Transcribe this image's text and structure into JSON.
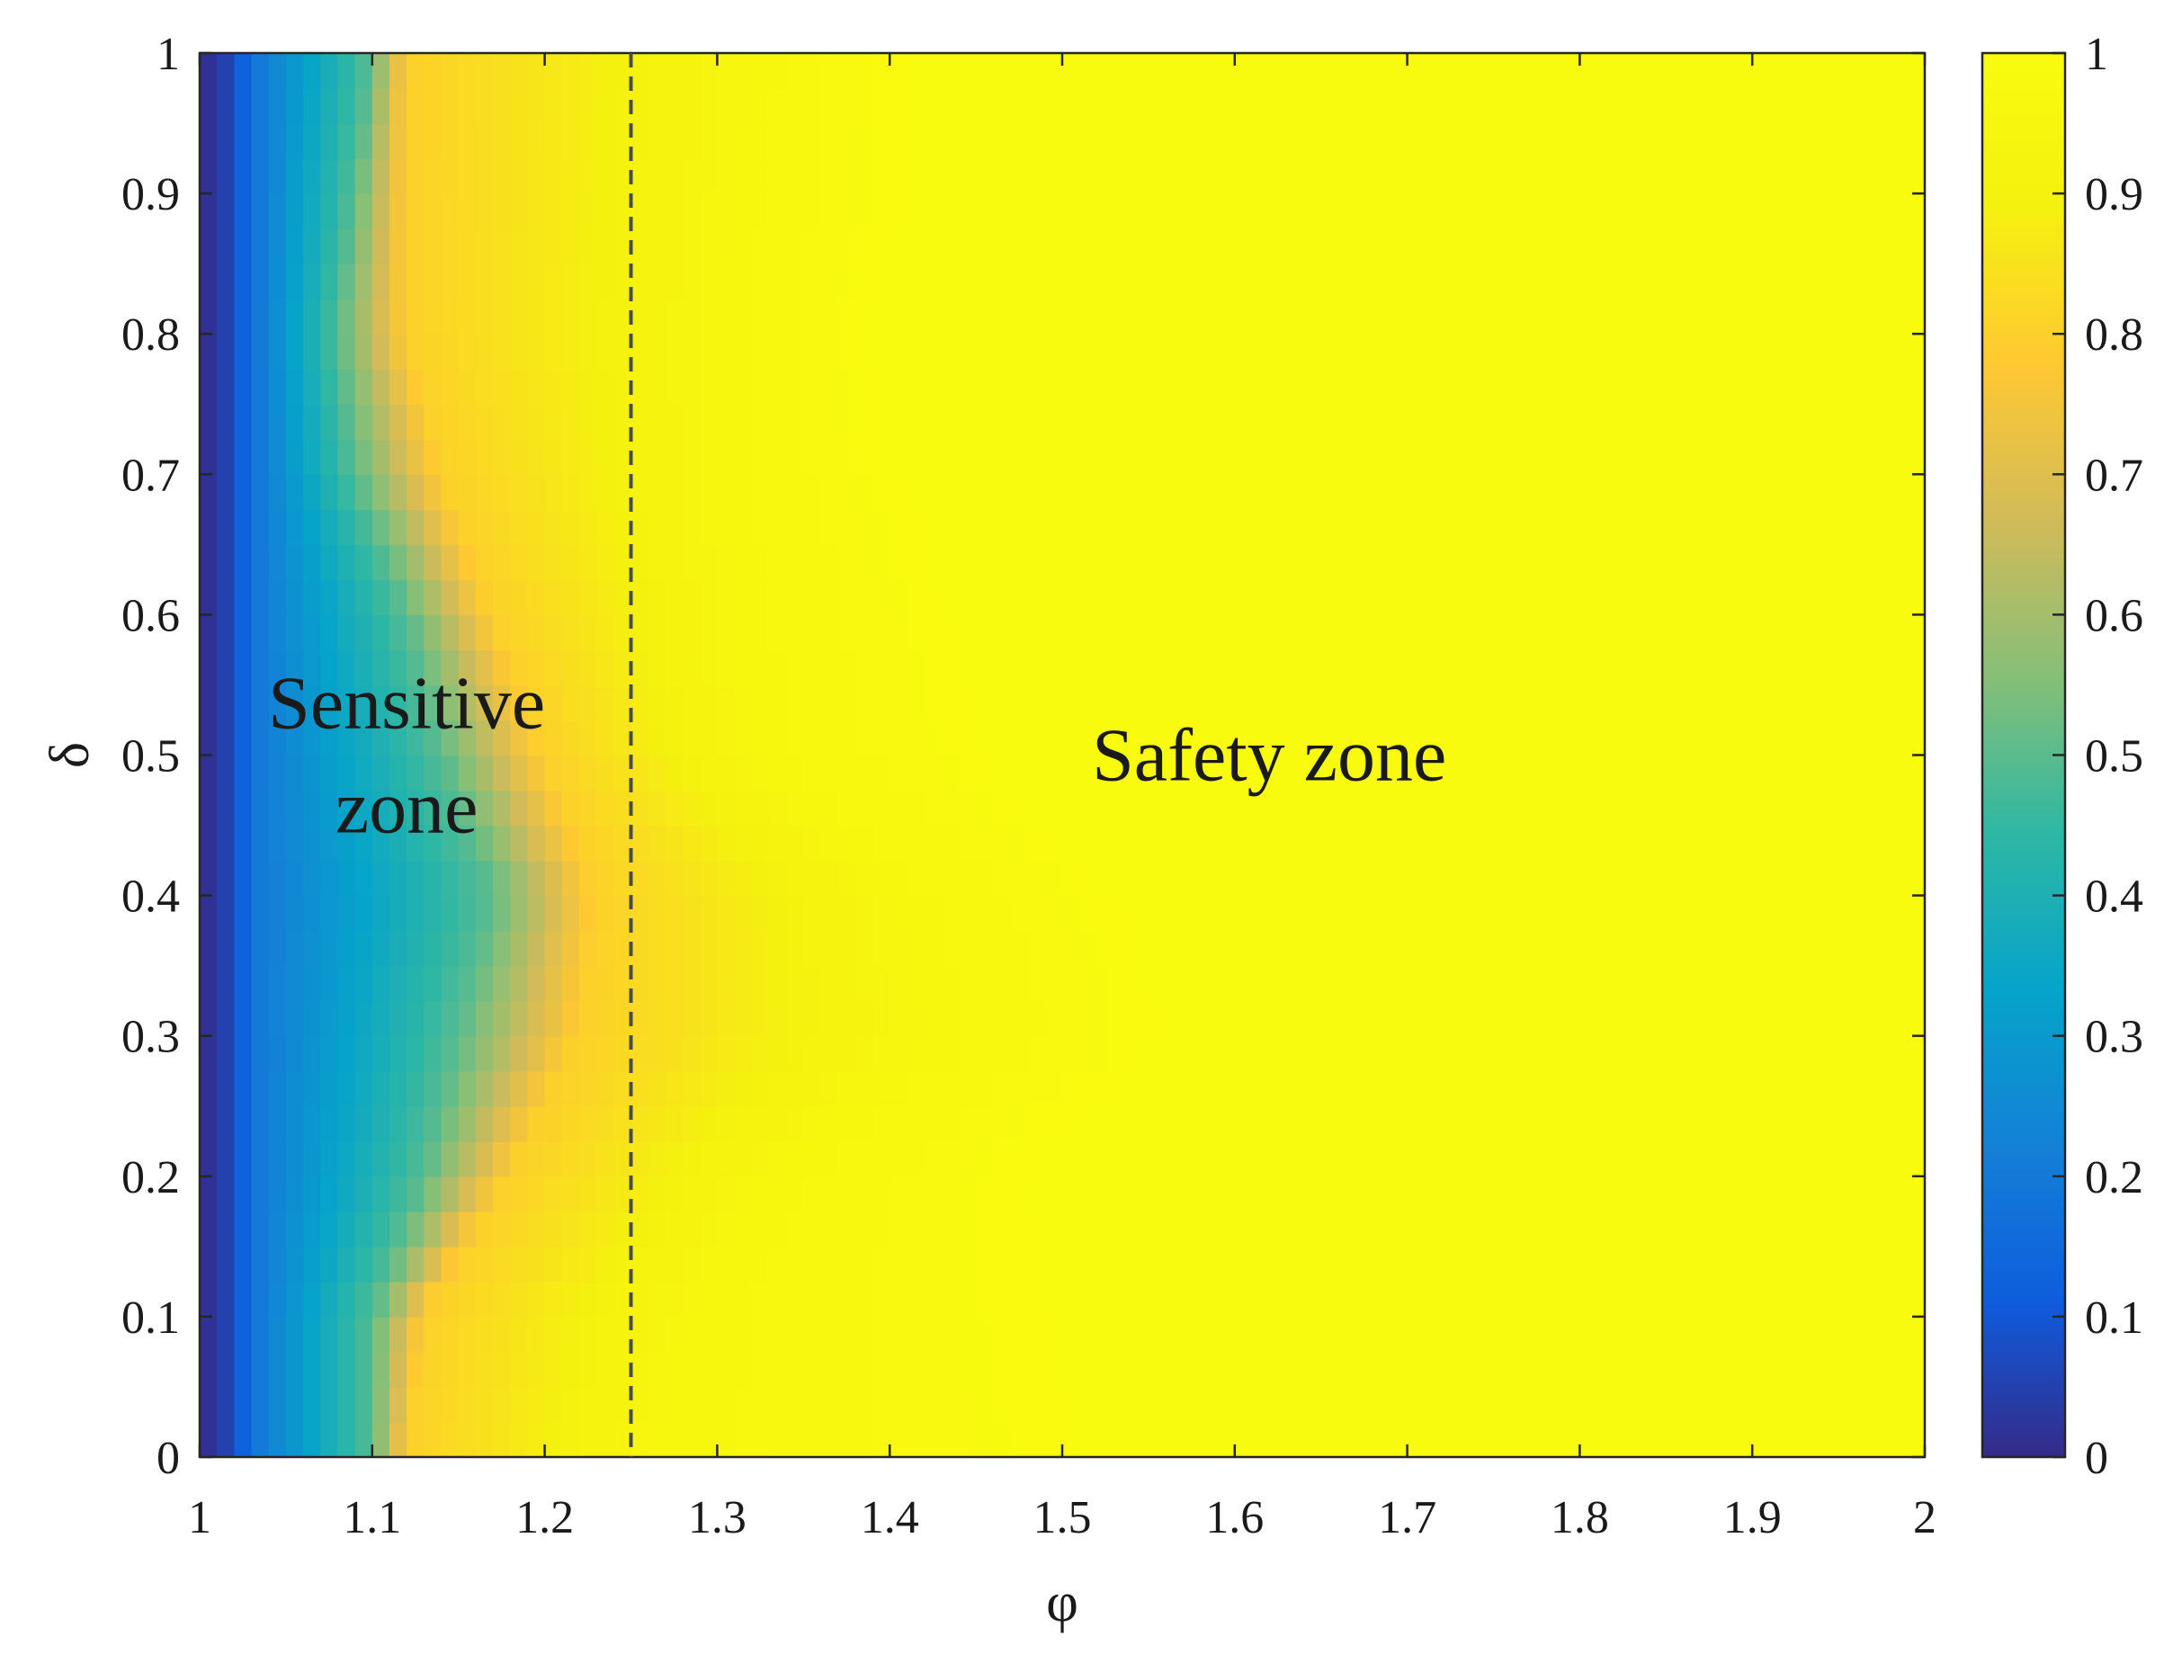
{
  "chart_data": {
    "type": "heatmap",
    "xlabel": "φ",
    "ylabel": "δ",
    "xlim": [
      1,
      2
    ],
    "ylim": [
      0,
      1
    ],
    "x_ticks": [
      "1",
      "1.1",
      "1.2",
      "1.3",
      "1.4",
      "1.5",
      "1.6",
      "1.7",
      "1.8",
      "1.9",
      "2"
    ],
    "y_ticks": [
      "0",
      "0.1",
      "0.2",
      "0.3",
      "0.4",
      "0.5",
      "0.6",
      "0.7",
      "0.8",
      "0.9",
      "1"
    ],
    "colorbar": {
      "range": [
        0,
        1
      ],
      "ticks": [
        "0",
        "0.1",
        "0.2",
        "0.3",
        "0.4",
        "0.5",
        "0.6",
        "0.7",
        "0.8",
        "0.9",
        "1"
      ],
      "colormap": "parula",
      "stops": [
        "#352a87",
        "#0f5cdd",
        "#1481d6",
        "#06a4ca",
        "#2eb7a4",
        "#87bf77",
        "#d1bb59",
        "#fec832",
        "#f5f10f",
        "#f9fb0e"
      ]
    },
    "grid": false,
    "boundary_x": 1.25,
    "boundary_style": "dashed",
    "field_profile": {
      "delta": [
        0,
        0.1,
        0.2,
        0.3,
        0.4,
        0.5,
        0.6,
        0.7,
        0.8,
        0.9,
        1.0
      ],
      "phi_at_0_5": [
        1.1,
        1.1,
        1.13,
        1.15,
        1.17,
        1.14,
        1.12,
        1.09,
        1.08,
        1.09,
        1.1
      ],
      "phi_at_0_8": [
        1.12,
        1.13,
        1.18,
        1.22,
        1.23,
        1.2,
        1.17,
        1.14,
        1.12,
        1.12,
        1.12
      ],
      "phi_at_0_95": [
        1.26,
        1.28,
        1.33,
        1.42,
        1.4,
        1.32,
        1.31,
        1.3,
        1.3,
        1.31,
        1.32
      ],
      "phi_at_1_0": [
        1.55,
        1.52,
        1.5,
        1.58,
        1.55,
        1.47,
        1.45,
        1.42,
        1.4,
        1.42,
        1.42
      ]
    },
    "annotations": [
      {
        "lines": [
          "Sensitive",
          "zone"
        ],
        "x": 1.12,
        "y": 0.5
      },
      {
        "lines": [
          "Safety zone"
        ],
        "x": 1.62,
        "y": 0.5
      }
    ]
  }
}
